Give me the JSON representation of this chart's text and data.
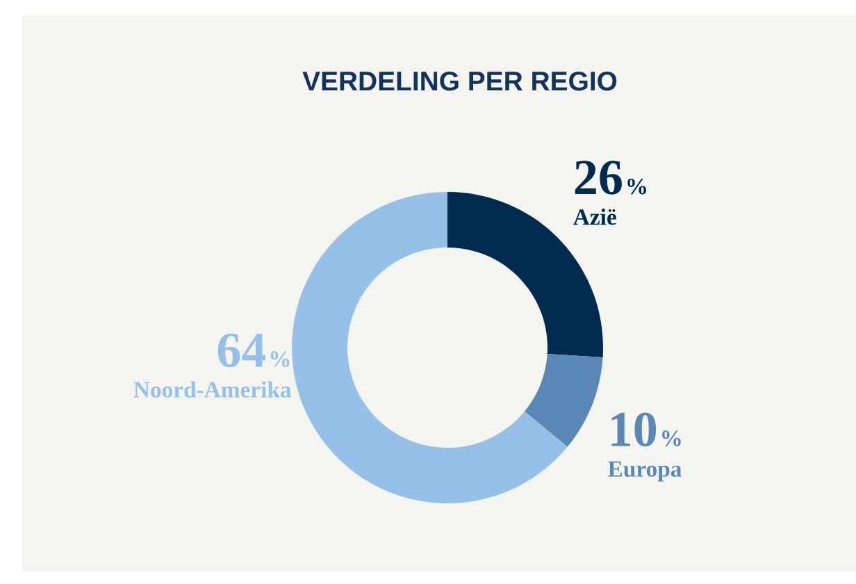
{
  "chart_data": {
    "type": "donut",
    "title": "VERDELING PER REGIO",
    "categories": [
      "Azië",
      "Europa",
      "Noord-Amerika"
    ],
    "values": [
      26,
      10,
      64
    ],
    "colors": [
      "#002b4f",
      "#5a87b6",
      "#97c0e8"
    ],
    "value_labels": [
      "26%",
      "10%",
      "64%"
    ]
  }
}
